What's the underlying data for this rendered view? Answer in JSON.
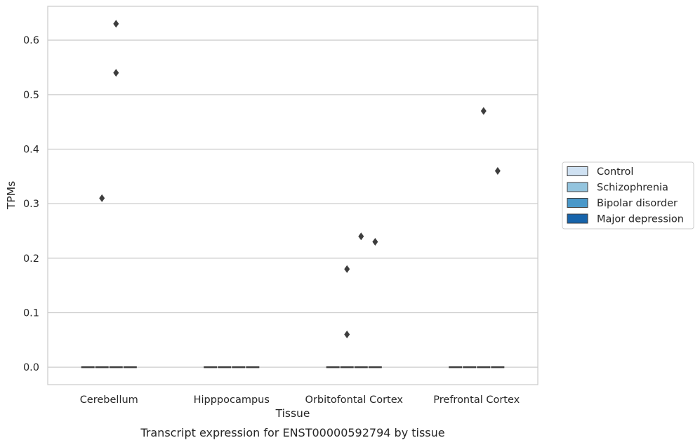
{
  "chart_data": {
    "type": "box",
    "caption": "Transcript expression for ENST00000592794 by tissue",
    "xlabel": "Tissue",
    "ylabel": "TPMs",
    "ylim": [
      -0.032,
      0.662
    ],
    "yticks": [
      0.0,
      0.1,
      0.2,
      0.3,
      0.4,
      0.5,
      0.6
    ],
    "ytick_labels": [
      "0.0",
      "0.1",
      "0.2",
      "0.3",
      "0.4",
      "0.5",
      "0.6"
    ],
    "grid": "horizontal",
    "legend_position": "right",
    "categories": [
      "Cerebellum",
      "Hipppocampus",
      "Orbitofontal Cortex",
      "Prefrontal Cortex"
    ],
    "series": [
      {
        "name": "Control",
        "color": "#cfe1f2"
      },
      {
        "name": "Schizophrenia",
        "color": "#93c4de"
      },
      {
        "name": "Bipolar disorder",
        "color": "#4a98c9"
      },
      {
        "name": "Major depression",
        "color": "#1764ab"
      }
    ],
    "boxes": [
      {
        "category": "Cerebellum",
        "series": "Control",
        "median": 0.0,
        "q1": 0.0,
        "q3": 0.0,
        "whisker_low": 0.0,
        "whisker_high": 0.0,
        "outliers": []
      },
      {
        "category": "Cerebellum",
        "series": "Schizophrenia",
        "median": 0.0,
        "q1": 0.0,
        "q3": 0.0,
        "whisker_low": 0.0,
        "whisker_high": 0.0,
        "outliers": [
          0.31
        ]
      },
      {
        "category": "Cerebellum",
        "series": "Bipolar disorder",
        "median": 0.0,
        "q1": 0.0,
        "q3": 0.0,
        "whisker_low": 0.0,
        "whisker_high": 0.0,
        "outliers": [
          0.63,
          0.54
        ]
      },
      {
        "category": "Cerebellum",
        "series": "Major depression",
        "median": 0.0,
        "q1": 0.0,
        "q3": 0.0,
        "whisker_low": 0.0,
        "whisker_high": 0.0,
        "outliers": []
      },
      {
        "category": "Hipppocampus",
        "series": "Control",
        "median": 0.0,
        "q1": 0.0,
        "q3": 0.0,
        "whisker_low": 0.0,
        "whisker_high": 0.0,
        "outliers": []
      },
      {
        "category": "Hipppocampus",
        "series": "Schizophrenia",
        "median": 0.0,
        "q1": 0.0,
        "q3": 0.0,
        "whisker_low": 0.0,
        "whisker_high": 0.0,
        "outliers": []
      },
      {
        "category": "Hipppocampus",
        "series": "Bipolar disorder",
        "median": 0.0,
        "q1": 0.0,
        "q3": 0.0,
        "whisker_low": 0.0,
        "whisker_high": 0.0,
        "outliers": []
      },
      {
        "category": "Hipppocampus",
        "series": "Major depression",
        "median": 0.0,
        "q1": 0.0,
        "q3": 0.0,
        "whisker_low": 0.0,
        "whisker_high": 0.0,
        "outliers": []
      },
      {
        "category": "Orbitofontal Cortex",
        "series": "Control",
        "median": 0.0,
        "q1": 0.0,
        "q3": 0.0,
        "whisker_low": 0.0,
        "whisker_high": 0.0,
        "outliers": []
      },
      {
        "category": "Orbitofontal Cortex",
        "series": "Schizophrenia",
        "median": 0.0,
        "q1": 0.0,
        "q3": 0.0,
        "whisker_low": 0.0,
        "whisker_high": 0.0,
        "outliers": [
          0.18,
          0.06
        ]
      },
      {
        "category": "Orbitofontal Cortex",
        "series": "Bipolar disorder",
        "median": 0.0,
        "q1": 0.0,
        "q3": 0.0,
        "whisker_low": 0.0,
        "whisker_high": 0.0,
        "outliers": [
          0.24
        ]
      },
      {
        "category": "Orbitofontal Cortex",
        "series": "Major depression",
        "median": 0.0,
        "q1": 0.0,
        "q3": 0.0,
        "whisker_low": 0.0,
        "whisker_high": 0.0,
        "outliers": [
          0.23
        ]
      },
      {
        "category": "Prefrontal Cortex",
        "series": "Control",
        "median": 0.0,
        "q1": 0.0,
        "q3": 0.0,
        "whisker_low": 0.0,
        "whisker_high": 0.0,
        "outliers": []
      },
      {
        "category": "Prefrontal Cortex",
        "series": "Schizophrenia",
        "median": 0.0,
        "q1": 0.0,
        "q3": 0.0,
        "whisker_low": 0.0,
        "whisker_high": 0.0,
        "outliers": []
      },
      {
        "category": "Prefrontal Cortex",
        "series": "Bipolar disorder",
        "median": 0.0,
        "q1": 0.0,
        "q3": 0.0,
        "whisker_low": 0.0,
        "whisker_high": 0.0,
        "outliers": [
          0.47
        ]
      },
      {
        "category": "Prefrontal Cortex",
        "series": "Major depression",
        "median": 0.0,
        "q1": 0.0,
        "q3": 0.0,
        "whisker_low": 0.0,
        "whisker_high": 0.0,
        "outliers": [
          0.36
        ]
      }
    ],
    "colors": {
      "grid": "#cccccc",
      "frame": "#cccccc",
      "box_edge": "#3d3d3d",
      "outlier": "#3d3d3d",
      "text": "#262626"
    }
  }
}
